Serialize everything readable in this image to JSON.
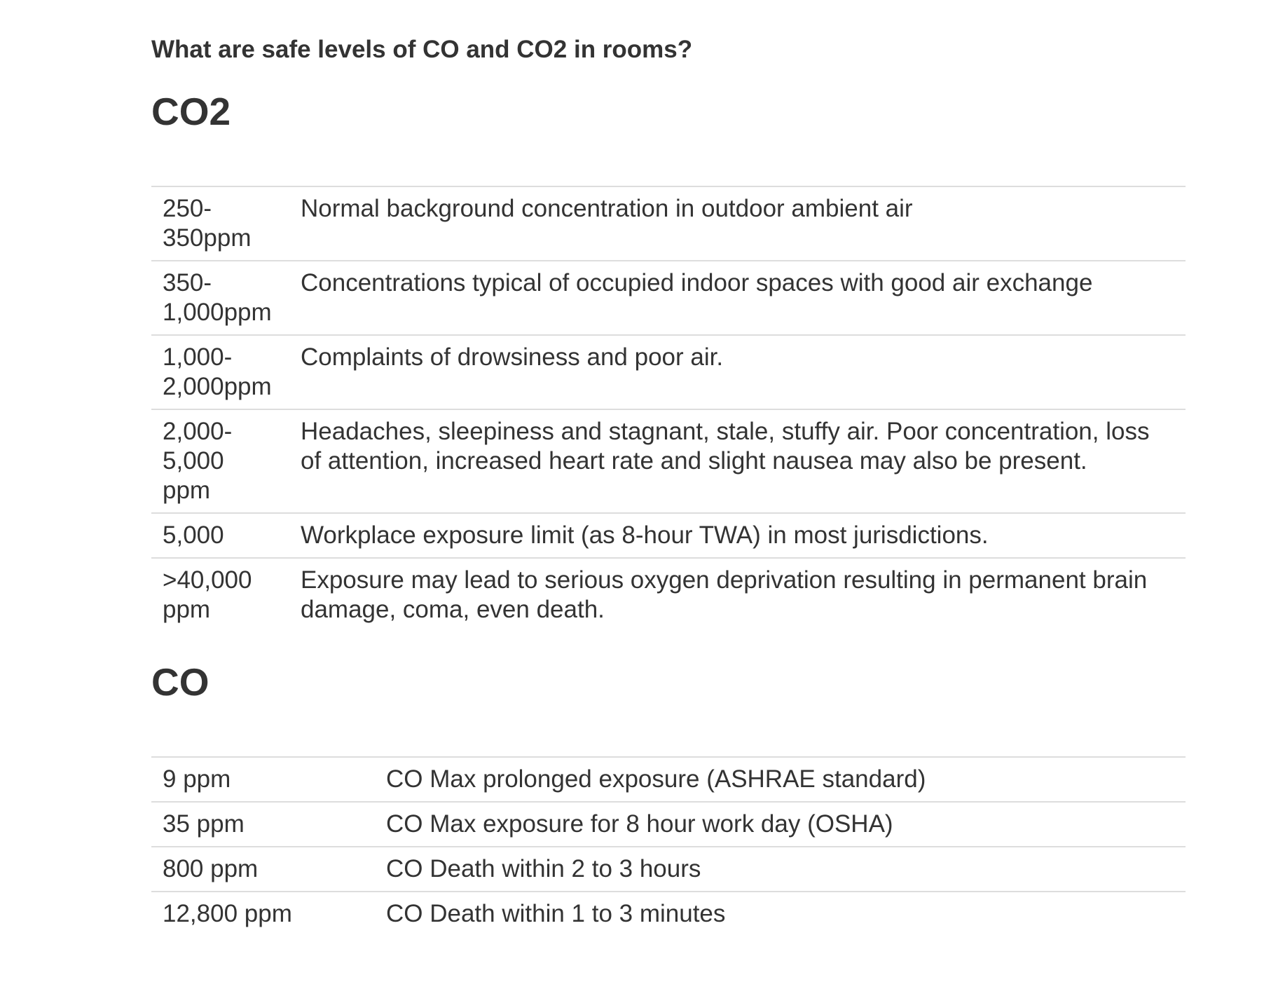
{
  "question": "What are safe levels of CO and CO2 in rooms?",
  "co2": {
    "heading": "CO2",
    "rows": [
      {
        "level": "250-\n350ppm",
        "description": "Normal background concentration in outdoor ambient air"
      },
      {
        "level": "350-\n1,000ppm",
        "description": "Concentrations typical of occupied indoor spaces with good air exchange"
      },
      {
        "level": "1,000-\n2,000ppm",
        "description": "Complaints of drowsiness and poor air."
      },
      {
        "level": "2,000-\n5,000\nppm",
        "description": "Headaches, sleepiness and stagnant, stale, stuffy air. Poor concentration, loss of attention, increased heart rate and slight nausea may also be present."
      },
      {
        "level": "5,000",
        "description": "Workplace exposure limit (as 8-hour TWA) in most jurisdictions."
      },
      {
        "level": ">40,000\nppm",
        "description": "Exposure may lead to serious oxygen deprivation resulting in permanent brain damage, coma, even death."
      }
    ]
  },
  "co": {
    "heading": "CO",
    "rows": [
      {
        "level": "9 ppm",
        "description": "CO Max prolonged exposure (ASHRAE standard)"
      },
      {
        "level": "35 ppm",
        "description": "CO Max exposure for 8 hour work day (OSHA)"
      },
      {
        "level": "800 ppm",
        "description": "CO Death within 2 to 3 hours"
      },
      {
        "level": "12,800 ppm",
        "description": "CO Death within 1 to 3 minutes"
      }
    ]
  }
}
